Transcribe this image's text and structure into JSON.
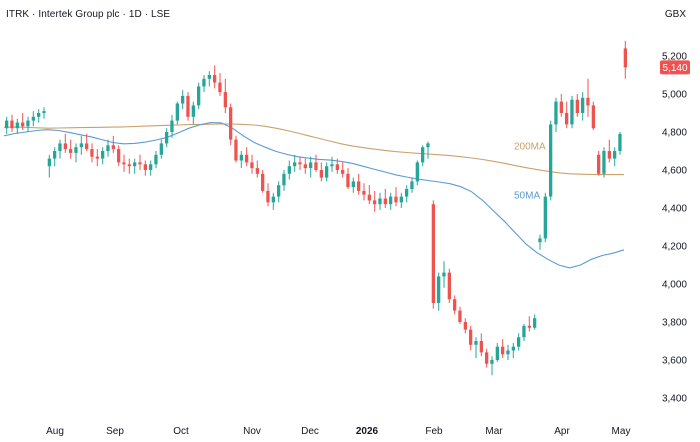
{
  "header": {
    "title": "ITRK · Intertek Group plc · 1D · LSE",
    "currency": "GBX"
  },
  "chart_data": {
    "type": "candlestick",
    "title": "ITRK · Intertek Group plc · 1D · LSE",
    "currency": "GBX",
    "ylim": [
      3400,
      5300
    ],
    "y_ticks": [
      3400,
      3600,
      3800,
      4000,
      4200,
      4400,
      4600,
      4800,
      5000,
      5200
    ],
    "y_tick_labels": [
      "3,400",
      "3,600",
      "3,800",
      "4,000",
      "4,200",
      "4,400",
      "4,600",
      "4,800",
      "5,000",
      "5,200"
    ],
    "x_ticks": [
      {
        "label": "Aug",
        "bold": false
      },
      {
        "label": "Sep",
        "bold": false
      },
      {
        "label": "Oct",
        "bold": false
      },
      {
        "label": "Nov",
        "bold": false
      },
      {
        "label": "Dec",
        "bold": false
      },
      {
        "label": "2026",
        "bold": true
      },
      {
        "label": "Feb",
        "bold": false
      },
      {
        "label": "Mar",
        "bold": false
      },
      {
        "label": "Apr",
        "bold": false
      },
      {
        "label": "May",
        "bold": false
      }
    ],
    "last_price": 5140,
    "last_price_label": "5,140",
    "colors": {
      "up": "#26a69a",
      "down": "#ef5350",
      "ma50": "#5b9bd5",
      "ma200": "#c9a26b",
      "badge": "#ef5350",
      "axis_text": "#131722"
    },
    "moving_averages": [
      {
        "name": "200MA",
        "values": [
          4825,
          4826,
          4825,
          4822,
          4820,
          4821,
          4822,
          4823,
          4824,
          4825,
          4826,
          4827,
          4829,
          4831,
          4833,
          4835,
          4837,
          4839,
          4840,
          4841,
          4842,
          4842,
          4840,
          4837,
          4830,
          4820,
          4808,
          4795,
          4780,
          4766,
          4752,
          4738,
          4727,
          4718,
          4710,
          4703,
          4697,
          4692,
          4688,
          4684,
          4680,
          4676,
          4670,
          4663,
          4655,
          4646,
          4635,
          4623,
          4612,
          4602,
          4593,
          4585,
          4580,
          4578,
          4577,
          4576,
          4576,
          4576
        ]
      },
      {
        "name": "50MA",
        "values": [
          4780,
          4792,
          4800,
          4808,
          4812,
          4808,
          4798,
          4786,
          4775,
          4760,
          4745,
          4738,
          4740,
          4747,
          4758,
          4772,
          4795,
          4820,
          4838,
          4850,
          4848,
          4820,
          4780,
          4745,
          4720,
          4698,
          4682,
          4670,
          4662,
          4656,
          4652,
          4645,
          4635,
          4620,
          4605,
          4590,
          4575,
          4563,
          4553,
          4545,
          4537,
          4528,
          4512,
          4485,
          4440,
          4385,
          4330,
          4270,
          4210,
          4165,
          4130,
          4100,
          4085,
          4100,
          4130,
          4150,
          4162,
          4180
        ]
      }
    ],
    "candles": [
      [
        4820,
        4880,
        4790,
        4860
      ],
      [
        4860,
        4890,
        4800,
        4820
      ],
      [
        4820,
        4870,
        4790,
        4850
      ],
      [
        4850,
        4900,
        4810,
        4830
      ],
      [
        4830,
        4880,
        4800,
        4860
      ],
      [
        4860,
        4910,
        4830,
        4880
      ],
      [
        4880,
        4920,
        4850,
        4900
      ],
      [
        4900,
        4930,
        4870,
        4910
      ],
      [
        4620,
        4680,
        4560,
        4660
      ],
      [
        4660,
        4720,
        4620,
        4700
      ],
      [
        4700,
        4760,
        4660,
        4740
      ],
      [
        4740,
        4790,
        4690,
        4710
      ],
      [
        4710,
        4760,
        4660,
        4690
      ],
      [
        4690,
        4740,
        4640,
        4720
      ],
      [
        4720,
        4780,
        4680,
        4740
      ],
      [
        4740,
        4790,
        4700,
        4710
      ],
      [
        4710,
        4740,
        4640,
        4670
      ],
      [
        4670,
        4710,
        4620,
        4660
      ],
      [
        4660,
        4720,
        4630,
        4700
      ],
      [
        4700,
        4760,
        4670,
        4730
      ],
      [
        4730,
        4780,
        4690,
        4710
      ],
      [
        4710,
        4730,
        4620,
        4640
      ],
      [
        4640,
        4680,
        4590,
        4630
      ],
      [
        4630,
        4660,
        4580,
        4620
      ],
      [
        4620,
        4660,
        4580,
        4640
      ],
      [
        4640,
        4680,
        4600,
        4630
      ],
      [
        4630,
        4650,
        4570,
        4600
      ],
      [
        4600,
        4650,
        4570,
        4630
      ],
      [
        4630,
        4700,
        4610,
        4680
      ],
      [
        4680,
        4760,
        4660,
        4740
      ],
      [
        4740,
        4820,
        4720,
        4800
      ],
      [
        4800,
        4890,
        4770,
        4860
      ],
      [
        4860,
        4960,
        4840,
        4950
      ],
      [
        4950,
        5020,
        4920,
        4990
      ],
      [
        4990,
        5010,
        4860,
        4880
      ],
      [
        4880,
        4960,
        4840,
        4940
      ],
      [
        4940,
        5060,
        4920,
        5040
      ],
      [
        5040,
        5100,
        5010,
        5080
      ],
      [
        5080,
        5120,
        5040,
        5100
      ],
      [
        5100,
        5150,
        5030,
        5060
      ],
      [
        5060,
        5110,
        4990,
        5010
      ],
      [
        5010,
        5080,
        4900,
        4930
      ],
      [
        4930,
        4950,
        4730,
        4760
      ],
      [
        4760,
        4780,
        4640,
        4650
      ],
      [
        4650,
        4700,
        4610,
        4680
      ],
      [
        4680,
        4720,
        4620,
        4640
      ],
      [
        4640,
        4680,
        4580,
        4610
      ],
      [
        4610,
        4650,
        4560,
        4580
      ],
      [
        4580,
        4600,
        4480,
        4490
      ],
      [
        4490,
        4530,
        4410,
        4430
      ],
      [
        4430,
        4480,
        4390,
        4460
      ],
      [
        4460,
        4540,
        4430,
        4520
      ],
      [
        4520,
        4600,
        4490,
        4580
      ],
      [
        4580,
        4650,
        4550,
        4620
      ],
      [
        4620,
        4680,
        4590,
        4640
      ],
      [
        4640,
        4670,
        4600,
        4630
      ],
      [
        4630,
        4660,
        4580,
        4610
      ],
      [
        4610,
        4670,
        4560,
        4640
      ],
      [
        4640,
        4680,
        4590,
        4600
      ],
      [
        4600,
        4640,
        4540,
        4560
      ],
      [
        4560,
        4640,
        4540,
        4620
      ],
      [
        4620,
        4670,
        4590,
        4630
      ],
      [
        4630,
        4660,
        4580,
        4600
      ],
      [
        4600,
        4640,
        4560,
        4580
      ],
      [
        4580,
        4610,
        4500,
        4510
      ],
      [
        4510,
        4560,
        4480,
        4540
      ],
      [
        4540,
        4580,
        4470,
        4490
      ],
      [
        4490,
        4530,
        4440,
        4470
      ],
      [
        4470,
        4520,
        4420,
        4440
      ],
      [
        4440,
        4490,
        4380,
        4420
      ],
      [
        4420,
        4480,
        4390,
        4450
      ],
      [
        4450,
        4500,
        4400,
        4420
      ],
      [
        4420,
        4480,
        4390,
        4460
      ],
      [
        4460,
        4510,
        4410,
        4430
      ],
      [
        4430,
        4480,
        4400,
        4460
      ],
      [
        4460,
        4520,
        4430,
        4500
      ],
      [
        4500,
        4560,
        4480,
        4540
      ],
      [
        4540,
        4650,
        4520,
        4640
      ],
      [
        4640,
        4730,
        4620,
        4720
      ],
      [
        4720,
        4750,
        4660,
        4740
      ],
      [
        4420,
        4440,
        3870,
        3900
      ],
      [
        3900,
        4060,
        3860,
        4040
      ],
      [
        4040,
        4120,
        3980,
        4060
      ],
      [
        4060,
        4080,
        3900,
        3920
      ],
      [
        3920,
        3940,
        3840,
        3860
      ],
      [
        3860,
        3880,
        3790,
        3800
      ],
      [
        3800,
        3820,
        3740,
        3760
      ],
      [
        3760,
        3780,
        3650,
        3680
      ],
      [
        3680,
        3720,
        3610,
        3700
      ],
      [
        3700,
        3740,
        3620,
        3640
      ],
      [
        3640,
        3660,
        3560,
        3580
      ],
      [
        3580,
        3620,
        3520,
        3600
      ],
      [
        3600,
        3690,
        3590,
        3670
      ],
      [
        3670,
        3710,
        3610,
        3630
      ],
      [
        3630,
        3680,
        3600,
        3650
      ],
      [
        3650,
        3690,
        3610,
        3670
      ],
      [
        3670,
        3740,
        3650,
        3720
      ],
      [
        3720,
        3790,
        3700,
        3780
      ],
      [
        3780,
        3830,
        3750,
        3770
      ],
      [
        3770,
        3840,
        3760,
        3820
      ],
      [
        4220,
        4260,
        4180,
        4240
      ],
      [
        4240,
        4480,
        4220,
        4460
      ],
      [
        4460,
        4860,
        4440,
        4840
      ],
      [
        4840,
        4980,
        4800,
        4960
      ],
      [
        4960,
        5000,
        4880,
        4900
      ],
      [
        4900,
        4960,
        4820,
        4840
      ],
      [
        4840,
        4990,
        4820,
        4970
      ],
      [
        4970,
        5000,
        4880,
        4900
      ],
      [
        4900,
        5010,
        4860,
        4980
      ],
      [
        4980,
        5080,
        4880,
        4940
      ],
      [
        4940,
        4960,
        4810,
        4820
      ],
      [
        4680,
        4700,
        4570,
        4580
      ],
      [
        4580,
        4720,
        4560,
        4700
      ],
      [
        4700,
        4760,
        4640,
        4660
      ],
      [
        4660,
        4720,
        4620,
        4700
      ],
      [
        4700,
        4800,
        4680,
        4790
      ],
      [
        5240,
        5280,
        5080,
        5140
      ]
    ]
  }
}
